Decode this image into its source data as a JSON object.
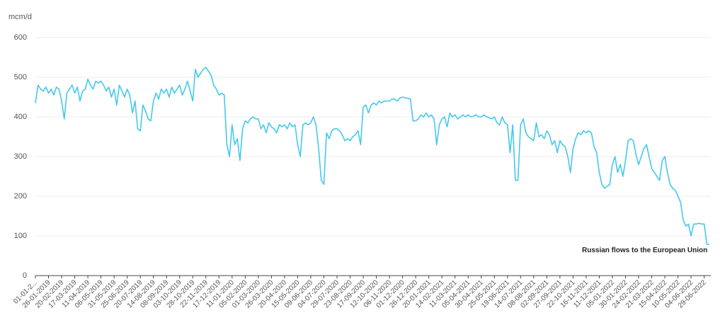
{
  "chart_data": {
    "type": "line",
    "y_label": "mcm/d",
    "annotation": "Russian flows to the European Union",
    "color": "#45c8ec",
    "grid": true,
    "ylim": [
      0,
      600
    ],
    "yticks": [
      0,
      100,
      200,
      300,
      400,
      500,
      600
    ],
    "categories": [
      "01-01-2...",
      null,
      null,
      null,
      null,
      "26-01-2019",
      null,
      null,
      null,
      null,
      "20-02-2019",
      null,
      null,
      null,
      null,
      "17-03-2019",
      null,
      null,
      null,
      null,
      "11-04-2019",
      null,
      null,
      null,
      null,
      "06-05-2019",
      null,
      null,
      null,
      null,
      "31-05-2019",
      null,
      null,
      null,
      null,
      "25-06-2019",
      null,
      null,
      null,
      null,
      "20-07-2019",
      null,
      null,
      null,
      null,
      "14-08-2019",
      null,
      null,
      null,
      null,
      "08-09-2019",
      null,
      null,
      null,
      null,
      "03-10-2019",
      null,
      null,
      null,
      null,
      "28-10-2019",
      null,
      null,
      null,
      null,
      "22-11-2019",
      null,
      null,
      null,
      null,
      "17-12-2019",
      null,
      null,
      null,
      null,
      "11-01-2020",
      null,
      null,
      null,
      null,
      "05-02-2020",
      null,
      null,
      null,
      null,
      "01-03-2020",
      null,
      null,
      null,
      null,
      "26-03-2020",
      null,
      null,
      null,
      null,
      "20-04-2020",
      null,
      null,
      null,
      null,
      "15-05-2020",
      null,
      null,
      null,
      null,
      "09-06-2020",
      null,
      null,
      null,
      null,
      "04-07-2020",
      null,
      null,
      null,
      null,
      "29-07-2020",
      null,
      null,
      null,
      null,
      "23-08-2020",
      null,
      null,
      null,
      null,
      "17-09-2020",
      null,
      null,
      null,
      null,
      "12-10-2020",
      null,
      null,
      null,
      null,
      "06-11-2020",
      null,
      null,
      null,
      null,
      "01-12-2020",
      null,
      null,
      null,
      null,
      "26-12-2020",
      null,
      null,
      null,
      null,
      "20-01-2021",
      null,
      null,
      null,
      null,
      "14-02-2021",
      null,
      null,
      null,
      null,
      "11-03-2021",
      null,
      null,
      null,
      null,
      "05-04-2021",
      null,
      null,
      null,
      null,
      "30-04-2021",
      null,
      null,
      null,
      null,
      "25-05-2021",
      null,
      null,
      null,
      null,
      "19-06-2021",
      null,
      null,
      null,
      null,
      "14-07-2021",
      null,
      null,
      null,
      null,
      "08-08-2021",
      null,
      null,
      null,
      null,
      "02-09-2021",
      null,
      null,
      null,
      null,
      "27-09-2021",
      null,
      null,
      null,
      null,
      "22-10-2021",
      null,
      null,
      null,
      null,
      "16-11-2021",
      null,
      null,
      null,
      null,
      "11-12-2021",
      null,
      null,
      null,
      null,
      "05-01-2022",
      null,
      null,
      null,
      null,
      "30-01-2022",
      null,
      null,
      null,
      null,
      "24-02-2022",
      null,
      null,
      null,
      null,
      "21-03-2022",
      null,
      null,
      null,
      null,
      "15-04-2022",
      null,
      null,
      null,
      null,
      "10-05-2022",
      null,
      null,
      null,
      null,
      "04-06-2022",
      null,
      null,
      null,
      null,
      "29-06-2022",
      null,
      null
    ],
    "values": [
      435,
      480,
      470,
      465,
      475,
      460,
      470,
      455,
      475,
      470,
      440,
      395,
      460,
      470,
      480,
      460,
      475,
      440,
      465,
      470,
      495,
      480,
      470,
      490,
      485,
      490,
      480,
      465,
      475,
      450,
      470,
      430,
      480,
      465,
      450,
      470,
      455,
      410,
      440,
      370,
      365,
      430,
      415,
      395,
      390,
      440,
      460,
      445,
      470,
      460,
      470,
      450,
      475,
      460,
      470,
      480,
      455,
      470,
      490,
      465,
      440,
      520,
      500,
      510,
      520,
      525,
      515,
      505,
      480,
      470,
      455,
      460,
      455,
      330,
      300,
      380,
      330,
      345,
      290,
      370,
      390,
      385,
      395,
      400,
      395,
      395,
      370,
      380,
      360,
      385,
      375,
      370,
      360,
      380,
      375,
      380,
      370,
      385,
      375,
      380,
      330,
      300,
      380,
      385,
      380,
      385,
      400,
      380,
      320,
      240,
      230,
      360,
      345,
      365,
      370,
      370,
      365,
      355,
      340,
      345,
      340,
      350,
      355,
      365,
      330,
      425,
      430,
      410,
      430,
      435,
      430,
      440,
      435,
      440,
      440,
      440,
      445,
      445,
      440,
      448,
      450,
      448,
      447,
      445,
      390,
      390,
      395,
      405,
      400,
      410,
      400,
      405,
      395,
      330,
      380,
      395,
      400,
      375,
      410,
      400,
      405,
      395,
      400,
      405,
      400,
      405,
      400,
      402,
      405,
      400,
      400,
      405,
      400,
      398,
      395,
      400,
      385,
      380,
      400,
      385,
      380,
      310,
      380,
      240,
      240,
      380,
      395,
      360,
      350,
      345,
      340,
      385,
      350,
      355,
      345,
      365,
      355,
      330,
      340,
      310,
      340,
      330,
      325,
      300,
      260,
      320,
      345,
      360,
      355,
      365,
      360,
      365,
      360,
      325,
      310,
      260,
      230,
      220,
      225,
      230,
      280,
      300,
      260,
      280,
      250,
      290,
      340,
      345,
      340,
      305,
      280,
      300,
      320,
      330,
      300,
      270,
      260,
      250,
      240,
      290,
      300,
      260,
      230,
      220,
      215,
      200,
      185,
      140,
      125,
      130,
      100,
      130,
      130,
      132,
      130,
      130,
      80,
      78
    ]
  }
}
